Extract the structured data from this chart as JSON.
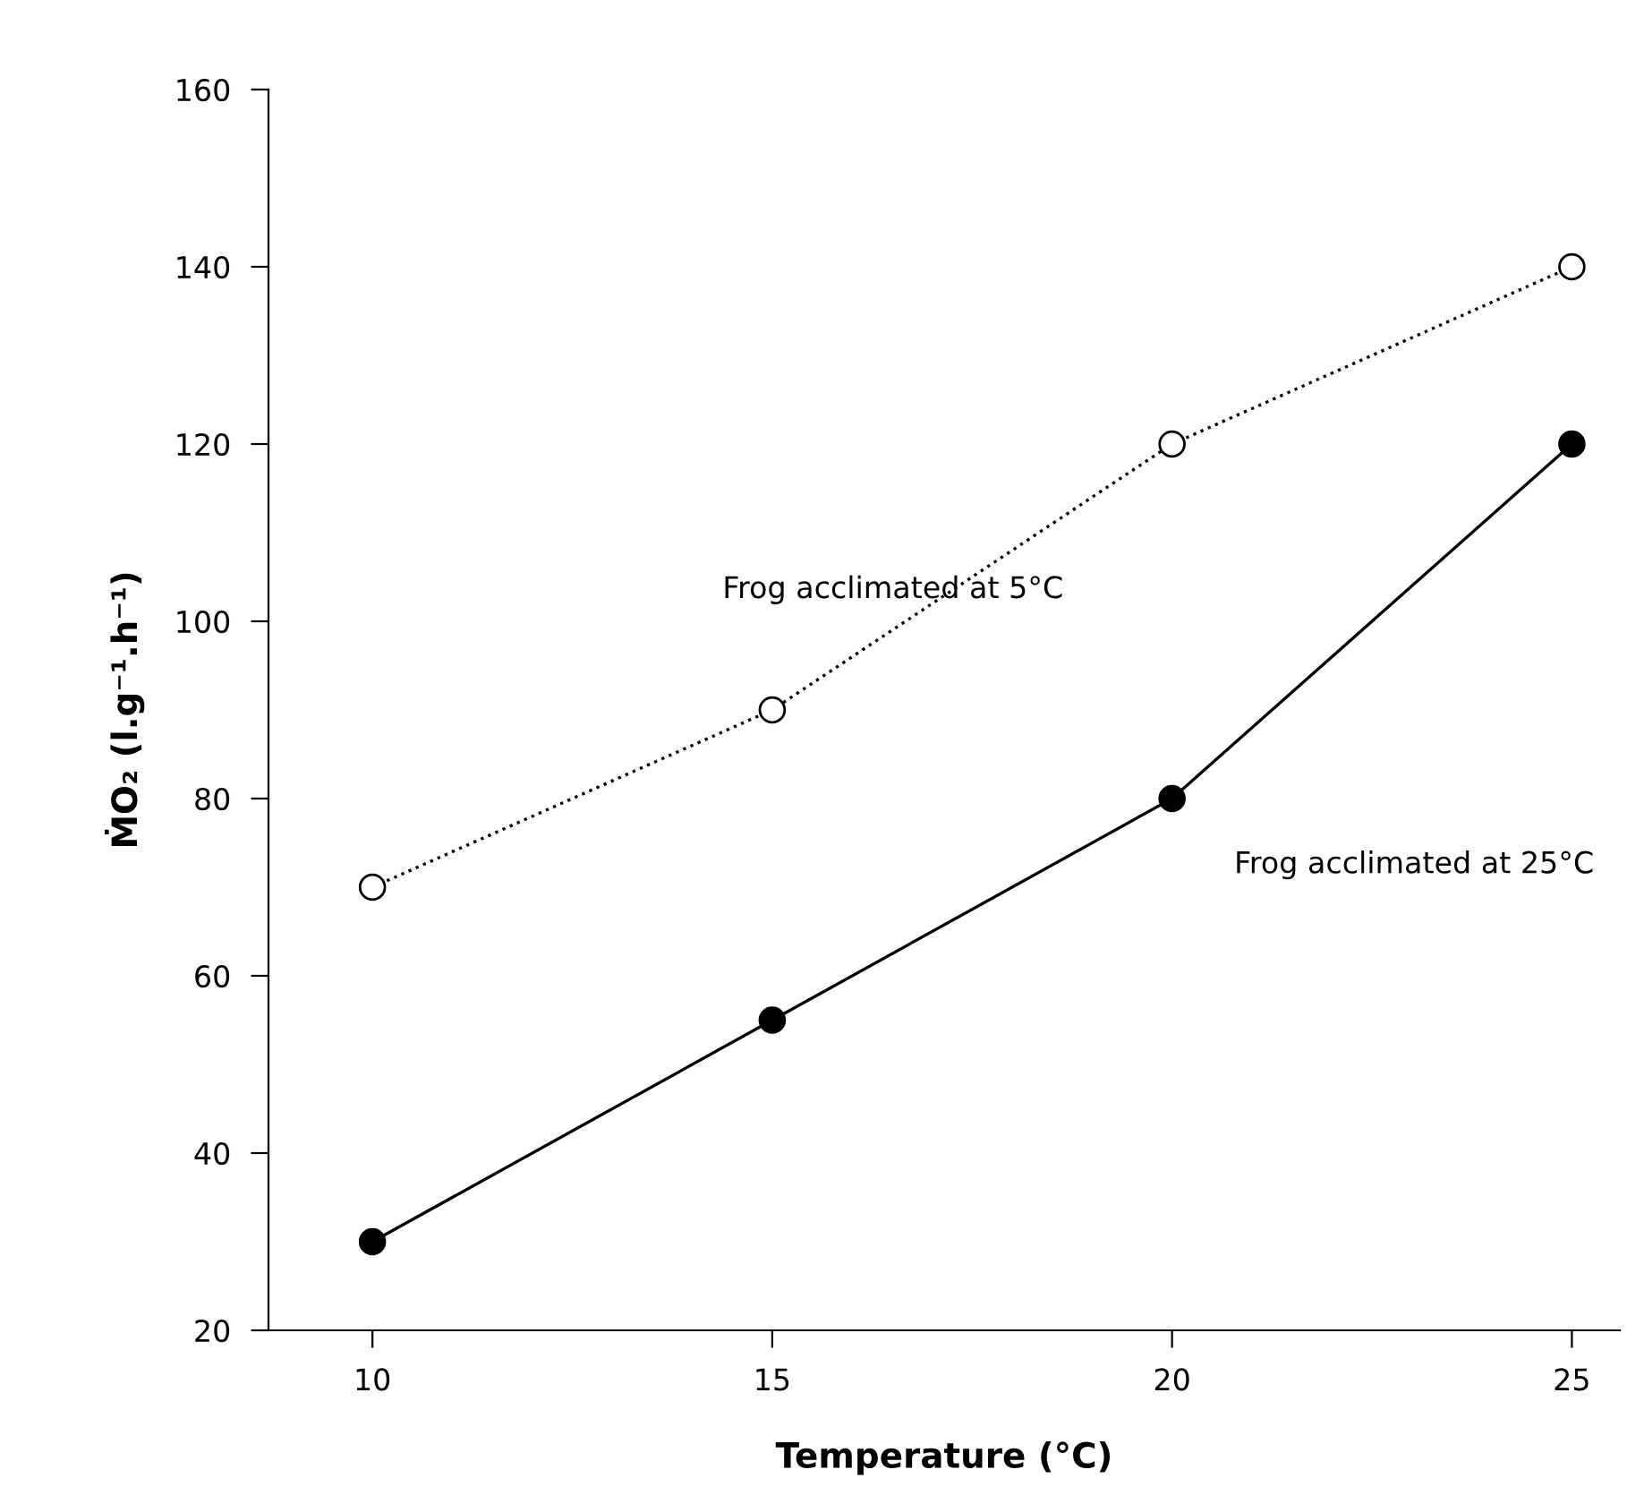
{
  "chart_data": {
    "type": "line",
    "xlabel": "Temperature (°C)",
    "ylabel": "ṀO₂ (l.g⁻¹.h⁻¹)",
    "x": [
      10,
      15,
      20,
      25
    ],
    "series": [
      {
        "name": "Frog acclimated at 5°C",
        "color": "#000000",
        "values": [
          70,
          90,
          120,
          140
        ],
        "marker": "circle",
        "line_style": "dotted"
      },
      {
        "name": "Frog acclimated at 25°C",
        "color": "#000000",
        "values": [
          30,
          55,
          80,
          120
        ],
        "marker": "circle",
        "line_style": "solid"
      }
    ],
    "xlim": [
      8.7,
      25.6
    ],
    "xticks": [
      10,
      15,
      20,
      25
    ],
    "ylim": [
      20,
      160
    ],
    "yticks": [
      20,
      40,
      60,
      80,
      100,
      120,
      140,
      160
    ],
    "grid": false,
    "legend": false
  }
}
